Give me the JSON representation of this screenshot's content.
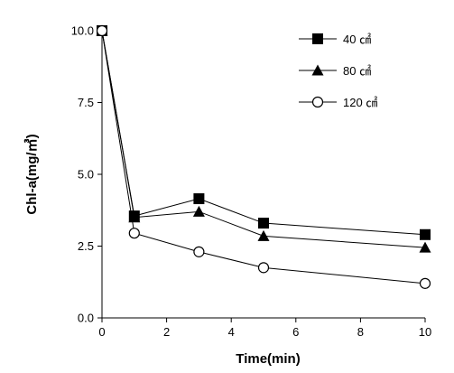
{
  "chart_data": {
    "type": "line",
    "title": "",
    "xlabel": "Time(min)",
    "ylabel": "Chl-a(mg/㎥)",
    "xlim": [
      0,
      10
    ],
    "ylim": [
      0,
      10
    ],
    "xticks": [
      "0",
      "2",
      "4",
      "6",
      "8",
      "10"
    ],
    "yticks": [
      "0.0",
      "2.5",
      "5.0",
      "7.5",
      "10.0"
    ],
    "grid": false,
    "legend_position": "top-right",
    "series": [
      {
        "name": "40 ㎠",
        "marker": "filled-square",
        "color": "#000000",
        "x": [
          0,
          1,
          3,
          5,
          10
        ],
        "y": [
          10.0,
          3.55,
          4.15,
          3.3,
          2.9
        ]
      },
      {
        "name": "80 ㎠",
        "marker": "filled-triangle",
        "color": "#000000",
        "x": [
          0,
          1,
          3,
          5,
          10
        ],
        "y": [
          10.0,
          3.5,
          3.7,
          2.85,
          2.45
        ]
      },
      {
        "name": "120 ㎠",
        "marker": "open-circle",
        "color": "#000000",
        "x": [
          0,
          1,
          3,
          5,
          10
        ],
        "y": [
          10.0,
          2.95,
          2.3,
          1.75,
          1.2
        ]
      }
    ]
  }
}
